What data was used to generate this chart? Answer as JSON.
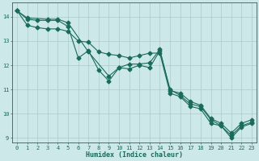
{
  "xlabel": "Humidex (Indice chaleur)",
  "background_color": "#cce8e8",
  "grid_color": "#aacccc",
  "line_color": "#1a6b5a",
  "xlim": [
    -0.5,
    23.5
  ],
  "ylim": [
    8.8,
    14.6
  ],
  "yticks": [
    9,
    10,
    11,
    12,
    13,
    14
  ],
  "xticks": [
    0,
    1,
    2,
    3,
    4,
    5,
    6,
    7,
    8,
    9,
    10,
    11,
    12,
    13,
    14,
    15,
    16,
    17,
    18,
    19,
    20,
    21,
    22,
    23
  ],
  "series1_x": [
    0,
    1,
    2,
    3,
    4,
    5,
    6,
    7,
    8,
    9,
    10,
    11,
    12,
    13,
    14,
    15,
    16,
    17,
    18,
    19,
    20,
    21,
    22,
    23
  ],
  "series1_y": [
    14.25,
    13.9,
    13.85,
    13.85,
    13.85,
    13.6,
    12.3,
    12.6,
    11.8,
    11.35,
    11.9,
    11.85,
    12.0,
    11.9,
    12.6,
    11.0,
    10.75,
    10.4,
    10.3,
    9.75,
    9.5,
    9.1,
    9.5,
    9.65
  ],
  "series2_x": [
    0,
    1,
    3,
    4,
    5,
    7,
    9,
    10,
    11,
    12,
    13,
    14,
    15,
    16,
    17,
    18,
    19,
    20,
    21,
    22,
    23
  ],
  "series2_y": [
    14.25,
    13.95,
    13.9,
    13.9,
    13.75,
    12.55,
    11.55,
    11.9,
    12.05,
    12.05,
    12.1,
    12.65,
    10.95,
    10.85,
    10.5,
    10.35,
    9.8,
    9.6,
    9.2,
    9.6,
    9.75
  ],
  "series3_x": [
    0,
    1,
    2,
    3,
    4,
    5,
    6,
    7,
    8,
    9,
    10,
    11,
    12,
    13,
    14,
    15,
    16,
    17,
    18,
    19,
    20,
    21,
    22,
    23
  ],
  "series3_y": [
    14.25,
    13.65,
    13.55,
    13.5,
    13.5,
    13.4,
    13.0,
    12.95,
    12.55,
    12.45,
    12.4,
    12.3,
    12.4,
    12.5,
    12.5,
    10.85,
    10.7,
    10.3,
    10.2,
    9.6,
    9.5,
    9.0,
    9.45,
    9.6
  ]
}
